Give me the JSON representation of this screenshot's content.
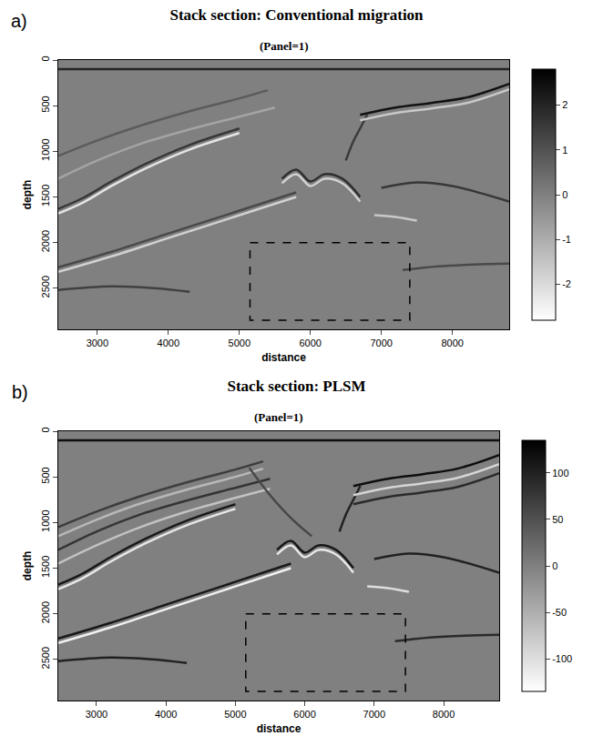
{
  "chart_data": [
    {
      "type": "heatmap",
      "panel": "a)",
      "title": "Stack section: Conventional migration",
      "subtitle": "(Panel=1)",
      "x_label": "distance",
      "y_label": "depth",
      "xlim": [
        2450,
        8800
      ],
      "ylim": [
        2950,
        0
      ],
      "xticks": [
        3000,
        4000,
        5000,
        6000,
        7000,
        8000
      ],
      "yticks": [
        0,
        500,
        1000,
        1500,
        2000,
        2500
      ],
      "cells": {
        "x": [
          2450,
          8800
        ],
        "y": [
          0,
          2950
        ],
        "z": [
          [
            0,
            0
          ],
          [
            0,
            0
          ]
        ]
      },
      "colorbar": {
        "range": [
          -2.8,
          2.8
        ],
        "ticks": [
          -2,
          -1,
          0,
          1,
          2
        ]
      },
      "box": {
        "x": [
          5150,
          7400
        ],
        "y": [
          2000,
          2850
        ]
      },
      "series": [
        {
          "x": [
            2450,
            8800
          ],
          "y": [
            100,
            100
          ],
          "amplitude": 2
        },
        {
          "x": [
            2450,
            3000,
            3600,
            4300,
            5000,
            5400
          ],
          "y": [
            1050,
            880,
            720,
            560,
            420,
            330
          ],
          "amplitude": 0.8
        },
        {
          "x": [
            2450,
            3000,
            3600,
            4300,
            5000,
            5500
          ],
          "y": [
            1300,
            1100,
            920,
            760,
            620,
            520
          ],
          "amplitude": -0.8
        },
        {
          "x": [
            2450,
            2800,
            3200,
            3700,
            4300,
            5000
          ],
          "y": [
            1680,
            1560,
            1380,
            1180,
            980,
            800
          ],
          "amplitude": -2.2
        },
        {
          "x": [
            2450,
            2800,
            3200,
            3700,
            4300,
            5000
          ],
          "y": [
            1630,
            1510,
            1330,
            1130,
            930,
            750
          ],
          "amplitude": 1.6
        },
        {
          "x": [
            2450,
            3200,
            4000,
            4800,
            5400,
            5800
          ],
          "y": [
            2320,
            2150,
            1950,
            1750,
            1600,
            1500
          ],
          "amplitude": -1.8
        },
        {
          "x": [
            2450,
            3200,
            4000,
            4800,
            5400,
            5800
          ],
          "y": [
            2270,
            2100,
            1900,
            1700,
            1550,
            1450
          ],
          "amplitude": 1.2
        },
        {
          "x": [
            2450,
            3200,
            3800,
            4300
          ],
          "y": [
            2520,
            2480,
            2500,
            2540
          ],
          "amplitude": 1.4
        },
        {
          "x": [
            5600,
            5800,
            6000,
            6200,
            6450,
            6700
          ],
          "y": [
            1300,
            1200,
            1330,
            1250,
            1300,
            1500
          ],
          "amplitude": 1.8
        },
        {
          "x": [
            5600,
            5800,
            6000,
            6200,
            6450,
            6700
          ],
          "y": [
            1350,
            1250,
            1380,
            1300,
            1350,
            1550
          ],
          "amplitude": -1.8
        },
        {
          "x": [
            6500,
            6600,
            6700,
            6800
          ],
          "y": [
            1100,
            900,
            750,
            600
          ],
          "amplitude": 1.5
        },
        {
          "x": [
            6700,
            7200,
            7700,
            8200,
            8800
          ],
          "y": [
            600,
            520,
            470,
            410,
            260
          ],
          "amplitude": 2.4
        },
        {
          "x": [
            6700,
            7200,
            7700,
            8200,
            8800
          ],
          "y": [
            660,
            580,
            530,
            470,
            320
          ],
          "amplitude": -1.6
        },
        {
          "x": [
            7000,
            7500,
            8000,
            8800
          ],
          "y": [
            1400,
            1340,
            1380,
            1550
          ],
          "amplitude": 1.6
        },
        {
          "x": [
            6900,
            7200,
            7500
          ],
          "y": [
            1700,
            1720,
            1760
          ],
          "amplitude": -1.6
        },
        {
          "x": [
            7300,
            7800,
            8300,
            8800
          ],
          "y": [
            2300,
            2260,
            2240,
            2230
          ],
          "amplitude": 1.2
        }
      ]
    },
    {
      "type": "heatmap",
      "panel": "b)",
      "title": "Stack section: PLSM",
      "subtitle": "(Panel=1)",
      "x_label": "distance",
      "y_label": "depth",
      "xlim": [
        2450,
        8800
      ],
      "ylim": [
        2950,
        0
      ],
      "xticks": [
        3000,
        4000,
        5000,
        6000,
        7000,
        8000
      ],
      "yticks": [
        0,
        500,
        1000,
        1500,
        2000,
        2500
      ],
      "cells": {
        "x": [
          2450,
          8800
        ],
        "y": [
          0,
          2950
        ],
        "z": [
          [
            0,
            0
          ],
          [
            0,
            0
          ]
        ]
      },
      "colorbar": {
        "range": [
          -135,
          135
        ],
        "ticks": [
          -100,
          -50,
          0,
          50,
          100
        ]
      },
      "box": {
        "x": [
          5150,
          7450
        ],
        "y": [
          2000,
          2850
        ]
      },
      "series": [
        {
          "x": [
            2450,
            8800
          ],
          "y": [
            100,
            100
          ],
          "amplitude": 120
        },
        {
          "x": [
            2450,
            3000,
            3600,
            4300,
            5000,
            5400
          ],
          "y": [
            1050,
            880,
            720,
            560,
            420,
            330
          ],
          "amplitude": 70
        },
        {
          "x": [
            2450,
            3000,
            3600,
            4300,
            5000,
            5400
          ],
          "y": [
            1150,
            970,
            800,
            640,
            500,
            410
          ],
          "amplitude": -60
        },
        {
          "x": [
            2450,
            3000,
            3600,
            4300,
            5000,
            5500
          ],
          "y": [
            1300,
            1100,
            920,
            760,
            620,
            520
          ],
          "amplitude": 80
        },
        {
          "x": [
            2450,
            3000,
            3600,
            4300,
            5000,
            5500
          ],
          "y": [
            1450,
            1250,
            1060,
            880,
            730,
            630
          ],
          "amplitude": -70
        },
        {
          "x": [
            2450,
            2800,
            3200,
            3700,
            4300,
            5000
          ],
          "y": [
            1680,
            1560,
            1380,
            1180,
            980,
            800
          ],
          "amplitude": 110
        },
        {
          "x": [
            2450,
            2800,
            3200,
            3700,
            4300,
            5000
          ],
          "y": [
            1730,
            1610,
            1430,
            1230,
            1030,
            850
          ],
          "amplitude": -110
        },
        {
          "x": [
            2450,
            3200,
            4000,
            4800,
            5400,
            5800
          ],
          "y": [
            2320,
            2150,
            1950,
            1750,
            1600,
            1500
          ],
          "amplitude": -120
        },
        {
          "x": [
            2450,
            3200,
            4000,
            4800,
            5400,
            5800
          ],
          "y": [
            2270,
            2100,
            1900,
            1700,
            1550,
            1450
          ],
          "amplitude": 110
        },
        {
          "x": [
            2450,
            3200,
            3800,
            4300
          ],
          "y": [
            2520,
            2480,
            2500,
            2540
          ],
          "amplitude": 100
        },
        {
          "x": [
            5600,
            5800,
            6000,
            6200,
            6450,
            6700
          ],
          "y": [
            1300,
            1200,
            1330,
            1250,
            1300,
            1500
          ],
          "amplitude": 110
        },
        {
          "x": [
            5600,
            5800,
            6000,
            6200,
            6450,
            6700
          ],
          "y": [
            1350,
            1250,
            1380,
            1300,
            1350,
            1550
          ],
          "amplitude": -110
        },
        {
          "x": [
            5200,
            5500,
            5800,
            6100
          ],
          "y": [
            400,
            700,
            950,
            1150
          ],
          "amplitude": 60
        },
        {
          "x": [
            6500,
            6600,
            6700,
            6800
          ],
          "y": [
            1100,
            900,
            750,
            600
          ],
          "amplitude": 100
        },
        {
          "x": [
            6700,
            7200,
            7700,
            8200,
            8800
          ],
          "y": [
            600,
            520,
            470,
            410,
            260
          ],
          "amplitude": 120
        },
        {
          "x": [
            6700,
            7200,
            7700,
            8200,
            8800
          ],
          "y": [
            700,
            620,
            570,
            510,
            360
          ],
          "amplitude": -90
        },
        {
          "x": [
            6700,
            7200,
            7700,
            8200,
            8800
          ],
          "y": [
            800,
            720,
            670,
            610,
            460
          ],
          "amplitude": 90
        },
        {
          "x": [
            7000,
            7500,
            8000,
            8800
          ],
          "y": [
            1400,
            1340,
            1380,
            1550
          ],
          "amplitude": 100
        },
        {
          "x": [
            6900,
            7200,
            7500
          ],
          "y": [
            1700,
            1720,
            1760
          ],
          "amplitude": -100
        },
        {
          "x": [
            7300,
            7800,
            8300,
            8800
          ],
          "y": [
            2300,
            2260,
            2240,
            2230
          ],
          "amplitude": 90
        }
      ]
    }
  ]
}
